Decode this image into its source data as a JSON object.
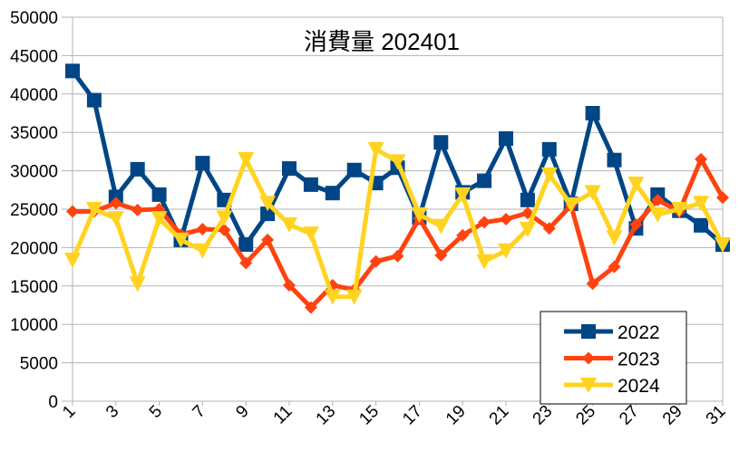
{
  "chart_data": {
    "type": "line",
    "title": "消費量 202401",
    "xlabel": "",
    "ylabel": "",
    "x": [
      1,
      2,
      3,
      4,
      5,
      6,
      7,
      8,
      9,
      10,
      11,
      12,
      13,
      14,
      15,
      16,
      17,
      18,
      19,
      20,
      21,
      22,
      23,
      24,
      25,
      26,
      27,
      28,
      29,
      30,
      31
    ],
    "x_tick_labels": [
      "1",
      "3",
      "5",
      "7",
      "9",
      "11",
      "13",
      "15",
      "17",
      "19",
      "21",
      "23",
      "25",
      "27",
      "29",
      "31"
    ],
    "ylim": [
      0,
      50000
    ],
    "y_ticks": [
      0,
      5000,
      10000,
      15000,
      20000,
      25000,
      30000,
      35000,
      40000,
      45000,
      50000
    ],
    "grid": "horizontal",
    "legend_position": "bottom-right",
    "series": [
      {
        "name": "2022",
        "color": "#004586",
        "marker": "square",
        "values": [
          43000,
          39200,
          26600,
          30200,
          26900,
          21000,
          31000,
          26200,
          20400,
          24400,
          30300,
          28200,
          27100,
          30100,
          28400,
          30400,
          23900,
          33700,
          27200,
          28700,
          34200,
          26200,
          32800,
          25700,
          37500,
          31400,
          22500,
          26900,
          24800,
          22900,
          20400
        ]
      },
      {
        "name": "2023",
        "color": "#ff420e",
        "marker": "diamond",
        "values": [
          24700,
          24700,
          25800,
          24900,
          25000,
          21700,
          22400,
          22300,
          18000,
          21000,
          15100,
          12200,
          15100,
          14500,
          18200,
          18900,
          23800,
          19000,
          21600,
          23300,
          23700,
          24500,
          22500,
          25500,
          15300,
          17500,
          23000,
          26200,
          24700,
          31500,
          26500
        ]
      },
      {
        "name": "2024",
        "color": "#ffd320",
        "marker": "triangle-down",
        "values": [
          18400,
          25000,
          23800,
          15300,
          23800,
          21000,
          19600,
          23900,
          31500,
          25800,
          23000,
          21800,
          13600,
          13600,
          32800,
          31200,
          24300,
          22800,
          26900,
          18200,
          19600,
          22400,
          29500,
          25600,
          27200,
          21300,
          28300,
          24300,
          25000,
          25800,
          20400
        ]
      }
    ]
  }
}
